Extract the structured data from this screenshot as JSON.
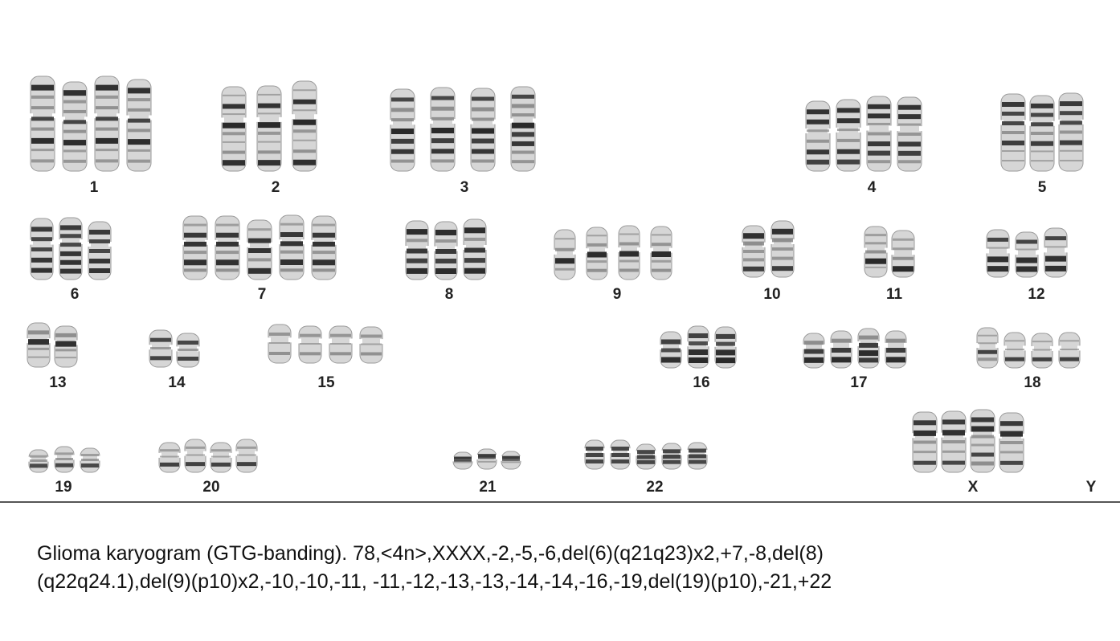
{
  "karyogram": {
    "colors": {
      "band_dark": "#2a2a2a",
      "band_mid": "#7a7a7a",
      "body": "#d6d6d6",
      "outline": "#9a9a9a"
    },
    "chromosomes": [
      {
        "label": "1",
        "count": 4
      },
      {
        "label": "2",
        "count": 3
      },
      {
        "label": "3",
        "count": 4
      },
      {
        "label": "4",
        "count": 4
      },
      {
        "label": "5",
        "count": 3
      },
      {
        "label": "6",
        "count": 3
      },
      {
        "label": "7",
        "count": 5
      },
      {
        "label": "8",
        "count": 3
      },
      {
        "label": "9",
        "count": 4
      },
      {
        "label": "10",
        "count": 2
      },
      {
        "label": "11",
        "count": 2
      },
      {
        "label": "12",
        "count": 3
      },
      {
        "label": "13",
        "count": 2
      },
      {
        "label": "14",
        "count": 2
      },
      {
        "label": "15",
        "count": 4
      },
      {
        "label": "16",
        "count": 3
      },
      {
        "label": "17",
        "count": 4
      },
      {
        "label": "18",
        "count": 4
      },
      {
        "label": "19",
        "count": 3
      },
      {
        "label": "20",
        "count": 4
      },
      {
        "label": "21",
        "count": 3
      },
      {
        "label": "22",
        "count": 5
      },
      {
        "label": "X",
        "count": 4
      },
      {
        "label": "Y",
        "count": 0
      }
    ]
  },
  "caption": {
    "line1": "Glioma karyogram (GTG-banding).   78,<4n>,XXXX,-2,-5,-6,del(6)(q21q23)x2,+7,-8,del(8)",
    "line2": "(q22q24.1),del(9)(p10)x2,-10,-10,-11, -11,-12,-13,-13,-14,-14,-16,-19,del(19)(p10),-21,+22"
  }
}
